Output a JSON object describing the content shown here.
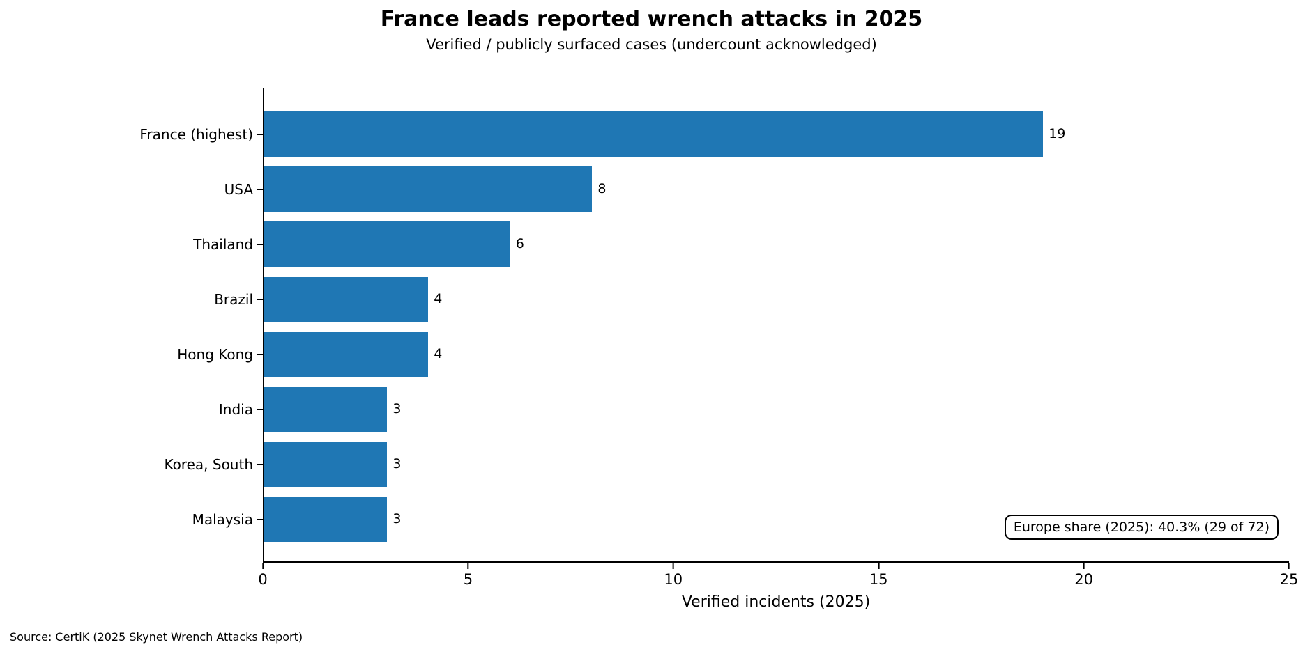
{
  "chart_data": {
    "type": "bar",
    "orientation": "horizontal",
    "title": "France leads reported wrench attacks in 2025",
    "subtitle": "Verified / publicly surfaced cases (undercount acknowledged)",
    "categories": [
      "France (highest)",
      "USA",
      "Thailand",
      "Brazil",
      "Hong Kong",
      "India",
      "Korea, South",
      "Malaysia"
    ],
    "values": [
      19,
      8,
      6,
      4,
      4,
      3,
      3,
      3
    ],
    "xlabel": "Verified incidents (2025)",
    "xlim": [
      0,
      25
    ],
    "xticks": [
      0,
      5,
      10,
      15,
      20,
      25
    ],
    "bar_color": "#1f77b4",
    "annotation": "Europe share (2025): 40.3% (29 of 72)",
    "source": "Source: CertiK (2025 Skynet Wrench Attacks Report)",
    "grid": false,
    "legend": "none",
    "visible_spines": [
      "left",
      "bottom"
    ]
  }
}
